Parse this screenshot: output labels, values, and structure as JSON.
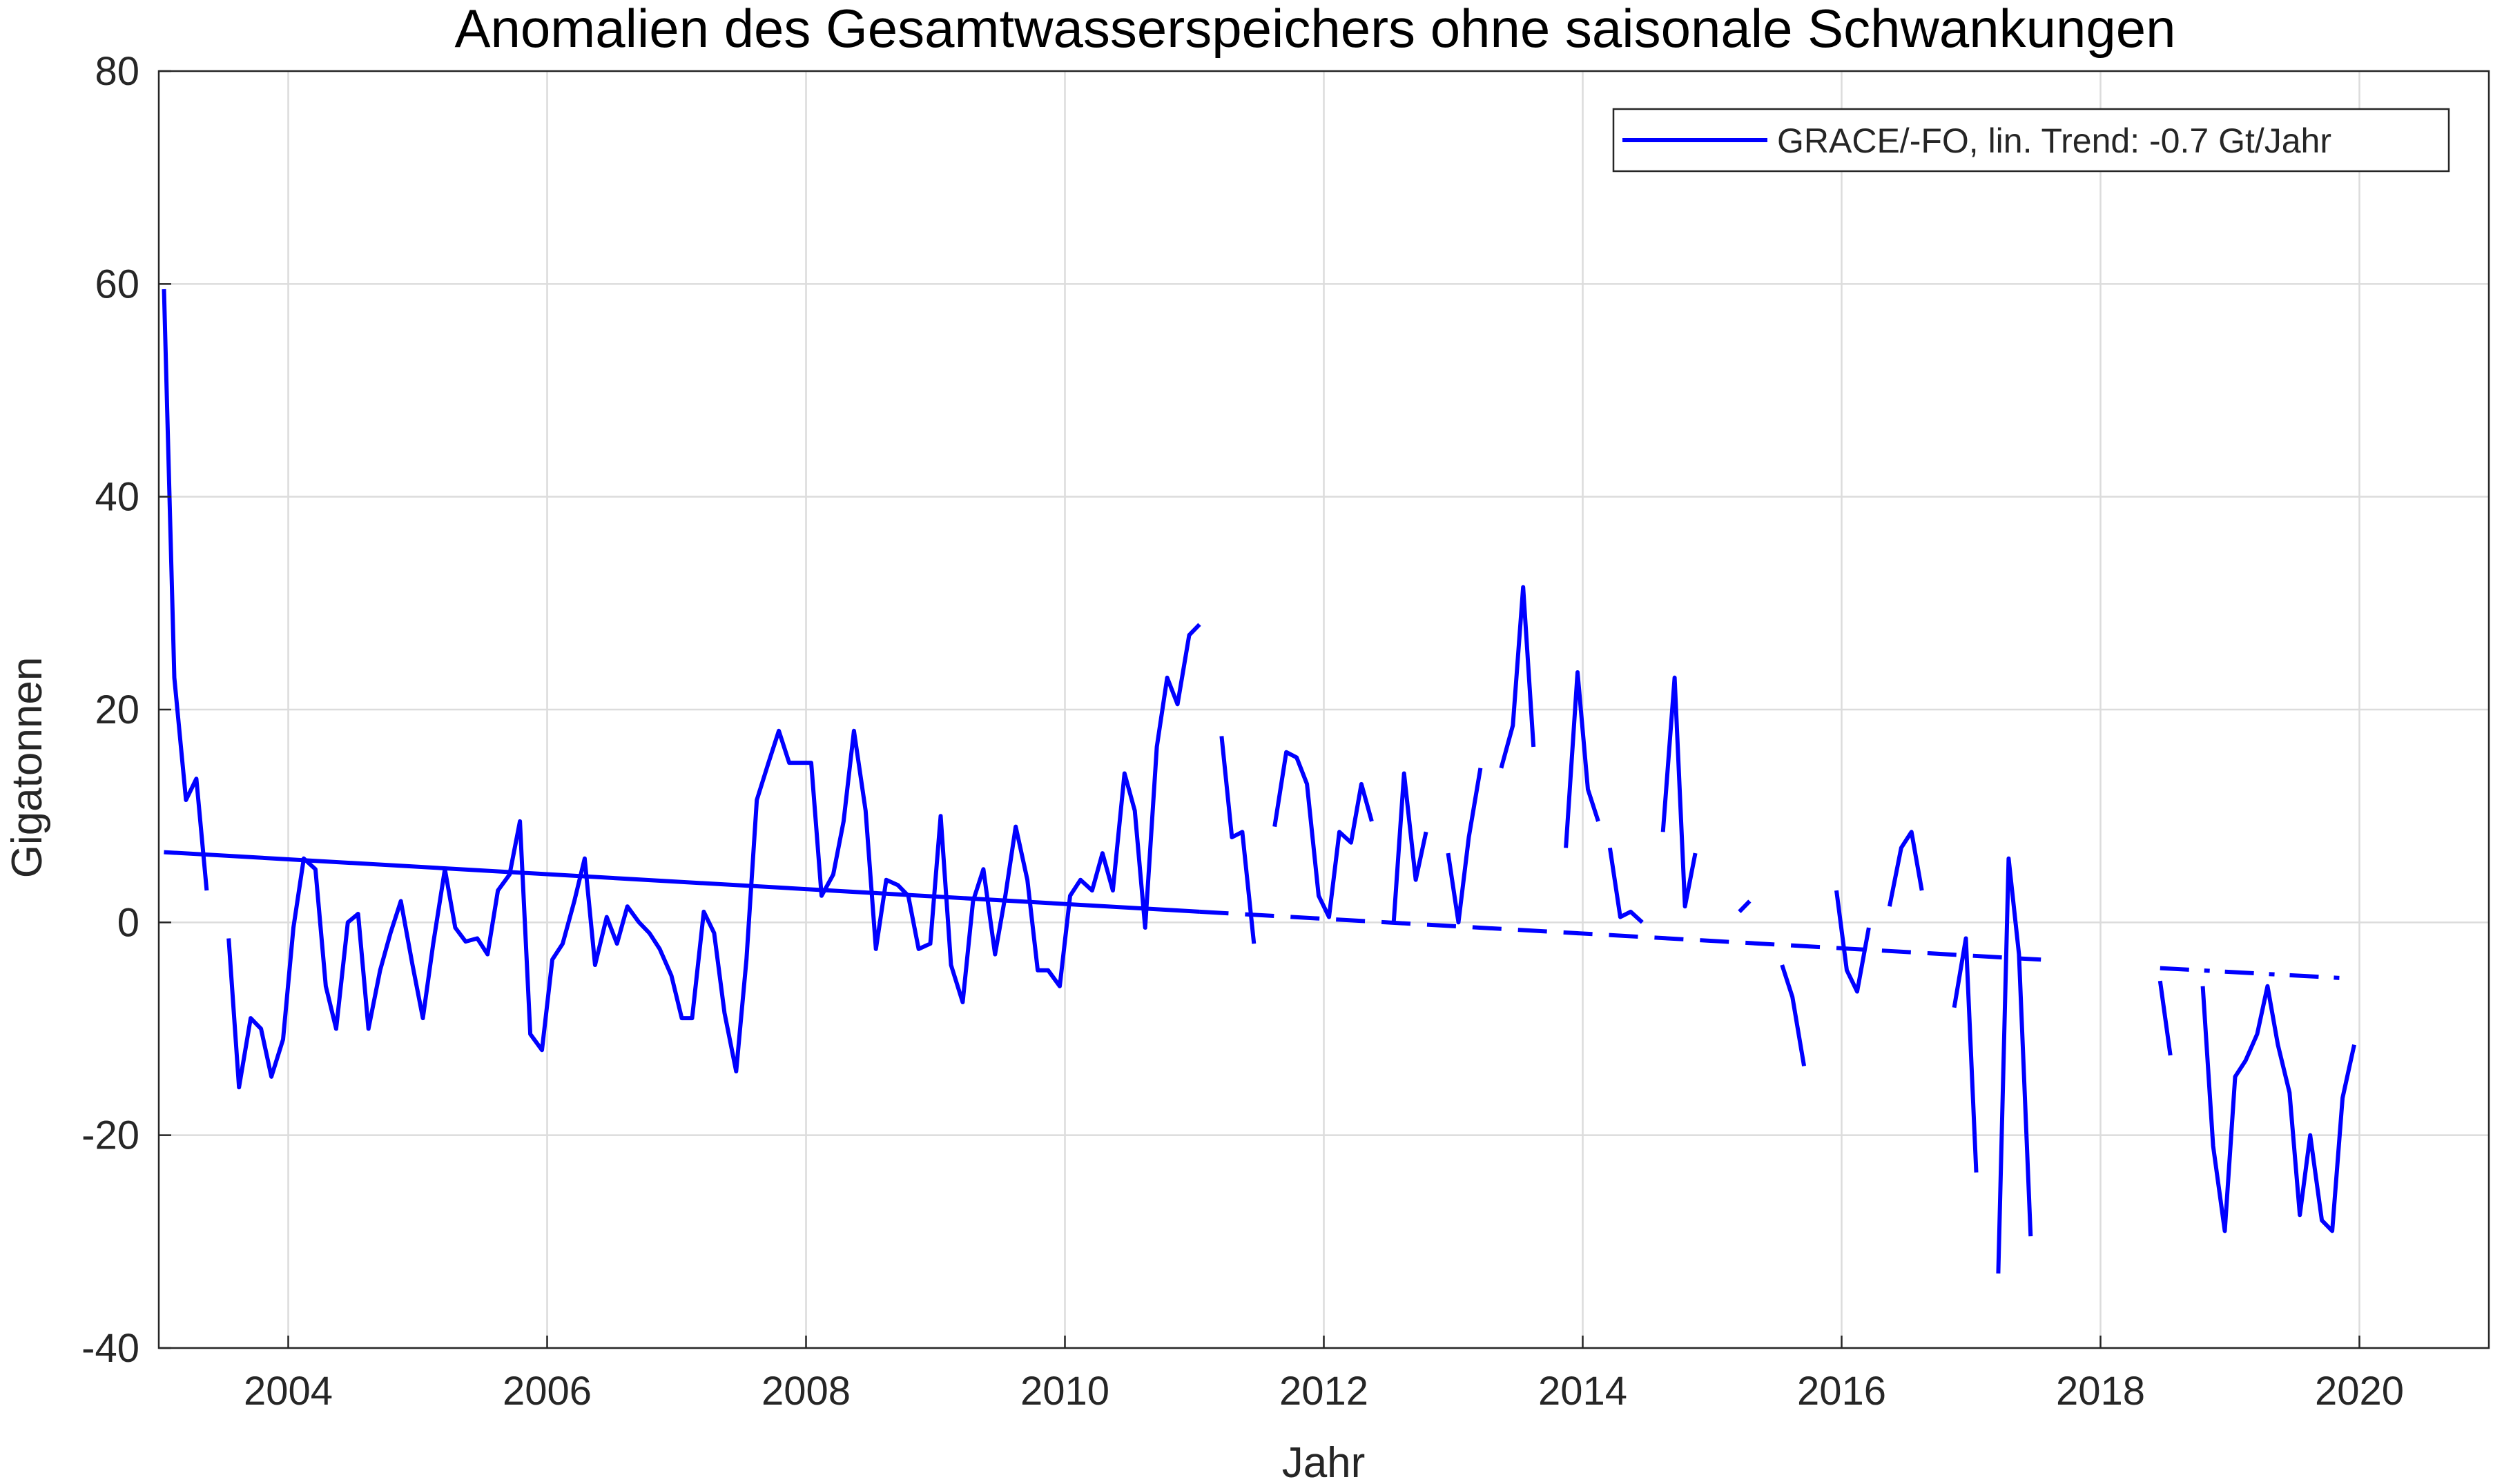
{
  "chart_data": {
    "type": "line",
    "title": "Anomalien des Gesamtwasserspeichers ohne saisonale Schwankungen",
    "xlabel": "Jahr",
    "ylabel": "Gigatonnen",
    "xlim": [
      2003.0,
      2021.0
    ],
    "ylim": [
      -40,
      80
    ],
    "xticks": [
      "2004",
      "2006",
      "2008",
      "2010",
      "2012",
      "2014",
      "2016",
      "2018",
      "2020"
    ],
    "yticks": [
      "-40",
      "-20",
      "0",
      "20",
      "40",
      "60",
      "80"
    ],
    "grid": true,
    "legend_position": "top-right",
    "series_color": "#0000ff",
    "series": [
      {
        "name": "GRACE/-FO, lin. Trend: -0.7 Gt/Jahr",
        "style": "solid",
        "segments": [
          [
            [
              2003.04,
              59.5
            ],
            [
              2003.12,
              23.0
            ],
            [
              2003.21,
              11.5
            ],
            [
              2003.29,
              13.5
            ],
            [
              2003.37,
              3.0
            ]
          ],
          [
            [
              2003.54,
              -1.5
            ],
            [
              2003.62,
              -15.5
            ],
            [
              2003.71,
              -9.0
            ],
            [
              2003.79,
              -10.0
            ],
            [
              2003.87,
              -14.5
            ],
            [
              2003.96,
              -11.0
            ],
            [
              2004.04,
              -0.5
            ],
            [
              2004.12,
              6.0
            ],
            [
              2004.21,
              5.0
            ],
            [
              2004.29,
              -6.0
            ],
            [
              2004.37,
              -10.0
            ],
            [
              2004.46,
              0.0
            ],
            [
              2004.54,
              0.8
            ],
            [
              2004.62,
              -10.0
            ],
            [
              2004.71,
              -4.5
            ],
            [
              2004.79,
              -1.0
            ],
            [
              2004.87,
              2.0
            ],
            [
              2004.96,
              -4.0
            ],
            [
              2005.04,
              -9.0
            ],
            [
              2005.12,
              -2.0
            ],
            [
              2005.21,
              5.0
            ],
            [
              2005.29,
              -0.5
            ],
            [
              2005.37,
              -1.8
            ],
            [
              2005.46,
              -1.5
            ],
            [
              2005.54,
              -3.0
            ],
            [
              2005.62,
              3.0
            ],
            [
              2005.71,
              4.5
            ],
            [
              2005.79,
              9.5
            ],
            [
              2005.87,
              -10.5
            ],
            [
              2005.96,
              -12.0
            ],
            [
              2006.04,
              -3.5
            ],
            [
              2006.12,
              -2.0
            ],
            [
              2006.21,
              2.0
            ],
            [
              2006.29,
              6.0
            ],
            [
              2006.37,
              -4.0
            ],
            [
              2006.46,
              0.5
            ],
            [
              2006.54,
              -2.0
            ],
            [
              2006.62,
              1.5
            ],
            [
              2006.71,
              0.0
            ],
            [
              2006.79,
              -1.0
            ],
            [
              2006.87,
              -2.5
            ],
            [
              2006.96,
              -5.0
            ],
            [
              2007.04,
              -9.0
            ],
            [
              2007.12,
              -9.0
            ],
            [
              2007.21,
              1.0
            ],
            [
              2007.29,
              -1.0
            ],
            [
              2007.37,
              -8.5
            ],
            [
              2007.46,
              -14.0
            ],
            [
              2007.54,
              -3.5
            ],
            [
              2007.62,
              11.5
            ],
            [
              2007.71,
              15.0
            ],
            [
              2007.79,
              18.0
            ],
            [
              2007.87,
              15.0
            ],
            [
              2007.96,
              15.0
            ],
            [
              2008.04,
              15.0
            ],
            [
              2008.12,
              2.5
            ],
            [
              2008.21,
              4.5
            ],
            [
              2008.29,
              9.5
            ],
            [
              2008.37,
              18.0
            ],
            [
              2008.46,
              10.5
            ],
            [
              2008.54,
              -2.5
            ],
            [
              2008.62,
              4.0
            ],
            [
              2008.71,
              3.5
            ],
            [
              2008.79,
              2.5
            ],
            [
              2008.87,
              -2.5
            ],
            [
              2008.96,
              -2.0
            ],
            [
              2009.04,
              10.0
            ],
            [
              2009.12,
              -4.0
            ],
            [
              2009.21,
              -7.5
            ],
            [
              2009.29,
              2.0
            ],
            [
              2009.37,
              5.0
            ],
            [
              2009.46,
              -3.0
            ],
            [
              2009.54,
              2.5
            ],
            [
              2009.62,
              9.0
            ],
            [
              2009.71,
              4.0
            ],
            [
              2009.79,
              -4.5
            ],
            [
              2009.87,
              -4.5
            ],
            [
              2009.96,
              -6.0
            ],
            [
              2010.04,
              2.5
            ],
            [
              2010.12,
              4.0
            ],
            [
              2010.21,
              3.0
            ],
            [
              2010.29,
              6.5
            ],
            [
              2010.37,
              3.0
            ],
            [
              2010.46,
              14.0
            ],
            [
              2010.54,
              10.5
            ],
            [
              2010.62,
              -0.5
            ],
            [
              2010.71,
              16.5
            ],
            [
              2010.79,
              23.0
            ],
            [
              2010.87,
              20.5
            ],
            [
              2010.96,
              27.0
            ],
            [
              2011.04,
              28.0
            ]
          ],
          [
            [
              2011.21,
              17.5
            ],
            [
              2011.29,
              8.0
            ],
            [
              2011.37,
              8.5
            ],
            [
              2011.46,
              -2.0
            ]
          ],
          [
            [
              2011.62,
              9.0
            ],
            [
              2011.71,
              16.0
            ],
            [
              2011.79,
              15.5
            ],
            [
              2011.87,
              13.0
            ],
            [
              2011.96,
              2.5
            ],
            [
              2012.04,
              0.5
            ],
            [
              2012.12,
              8.5
            ],
            [
              2012.21,
              7.5
            ],
            [
              2012.29,
              13.0
            ],
            [
              2012.37,
              9.5
            ]
          ],
          [
            [
              2012.54,
              0.0
            ],
            [
              2012.62,
              14.0
            ],
            [
              2012.71,
              4.0
            ],
            [
              2012.79,
              8.5
            ]
          ],
          [
            [
              2012.96,
              6.5
            ],
            [
              2013.04,
              0.0
            ],
            [
              2013.12,
              8.0
            ],
            [
              2013.21,
              14.5
            ]
          ],
          [
            [
              2013.37,
              14.5
            ],
            [
              2013.46,
              18.5
            ],
            [
              2013.54,
              31.5
            ],
            [
              2013.62,
              16.5
            ]
          ],
          [
            [
              2013.87,
              7.0
            ],
            [
              2013.96,
              23.5
            ],
            [
              2014.04,
              12.5
            ],
            [
              2014.12,
              9.5
            ]
          ],
          [
            [
              2014.21,
              7.0
            ],
            [
              2014.29,
              0.5
            ],
            [
              2014.37,
              1.0
            ],
            [
              2014.46,
              0.0
            ]
          ],
          [
            [
              2014.62,
              8.5
            ],
            [
              2014.71,
              23.0
            ],
            [
              2014.79,
              1.5
            ],
            [
              2014.87,
              6.5
            ]
          ],
          [
            [
              2015.21,
              1.0
            ],
            [
              2015.29,
              2.0
            ]
          ],
          [
            [
              2015.54,
              -4.0
            ],
            [
              2015.62,
              -7.0
            ],
            [
              2015.71,
              -13.5
            ]
          ],
          [
            [
              2015.96,
              3.0
            ],
            [
              2016.04,
              -4.5
            ],
            [
              2016.12,
              -6.5
            ],
            [
              2016.21,
              -0.5
            ]
          ],
          [
            [
              2016.37,
              1.5
            ],
            [
              2016.46,
              7.0
            ],
            [
              2016.54,
              8.5
            ],
            [
              2016.62,
              3.0
            ]
          ],
          [
            [
              2016.87,
              -8.0
            ],
            [
              2016.96,
              -1.5
            ],
            [
              2017.04,
              -23.5
            ]
          ],
          [
            [
              2017.21,
              -33.0
            ],
            [
              2017.29,
              6.0
            ],
            [
              2017.37,
              -3.0
            ],
            [
              2017.46,
              -29.5
            ]
          ],
          [
            [
              2018.46,
              -5.5
            ],
            [
              2018.54,
              -12.5
            ]
          ],
          [
            [
              2018.79,
              -6.0
            ],
            [
              2018.87,
              -21.0
            ],
            [
              2018.96,
              -29.0
            ],
            [
              2019.04,
              -14.5
            ],
            [
              2019.12,
              -13.0
            ],
            [
              2019.21,
              -10.5
            ],
            [
              2019.29,
              -6.0
            ],
            [
              2019.37,
              -11.5
            ],
            [
              2019.46,
              -16.0
            ],
            [
              2019.54,
              -27.5
            ],
            [
              2019.62,
              -20.0
            ],
            [
              2019.71,
              -28.0
            ],
            [
              2019.79,
              -29.0
            ],
            [
              2019.87,
              -16.5
            ],
            [
              2019.96,
              -11.5
            ]
          ]
        ]
      },
      {
        "style": "solid",
        "values": [
          [
            2003.04,
            6.6
          ],
          [
            2011.04,
            1.0
          ]
        ]
      },
      {
        "style": "dashed",
        "values": [
          [
            2011.04,
            1.0
          ],
          [
            2017.54,
            -3.5
          ]
        ]
      },
      {
        "style": "dash-dot",
        "values": [
          [
            2018.46,
            -4.3
          ],
          [
            2019.96,
            -5.3
          ]
        ]
      }
    ]
  }
}
